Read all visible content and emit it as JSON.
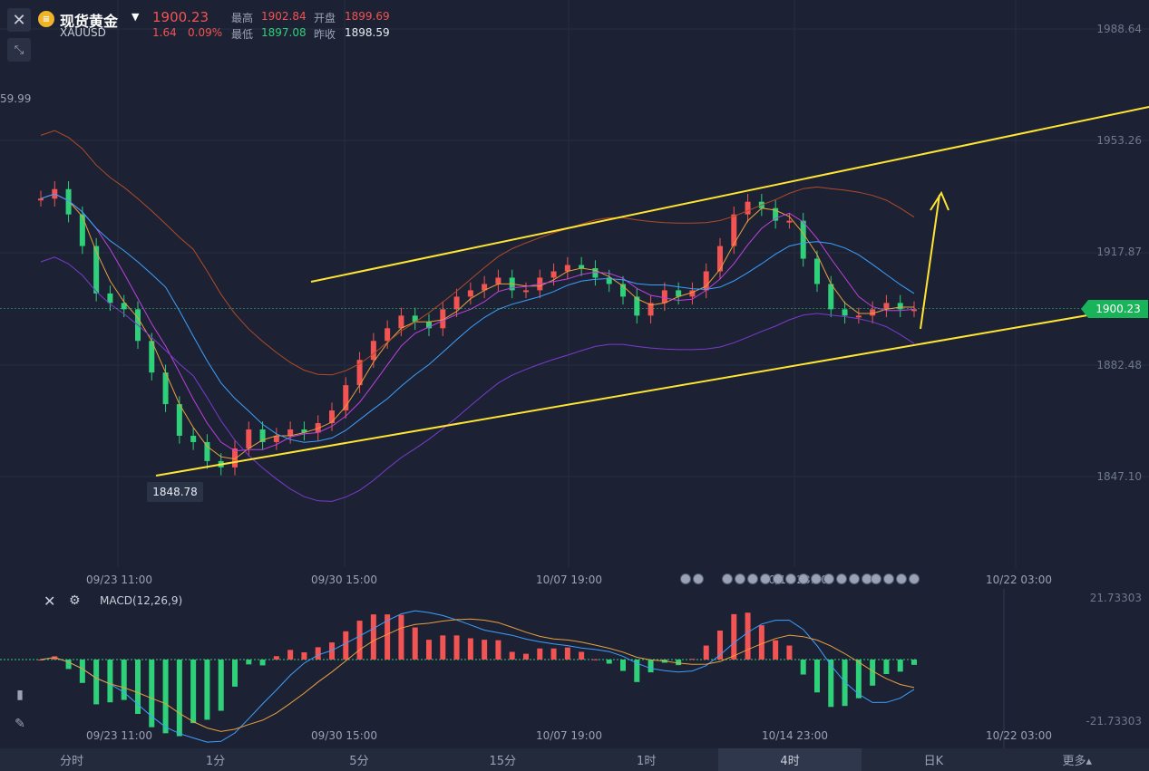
{
  "header": {
    "close_icon": "close-icon",
    "shrink_icon": "shrink-icon",
    "title": "现货黄金",
    "symbol": "XAUUSD",
    "price": "1900.23",
    "change": "1.64",
    "change_pct": "0.09%",
    "high_label": "最高",
    "high_value": "1902.84",
    "open_label": "开盘",
    "open_value": "1899.69",
    "low_label": "最低",
    "low_value": "1897.08",
    "prev_close_label": "昨收",
    "prev_close_value": "1898.59"
  },
  "main_chart": {
    "y_ticks": [
      "1988.64",
      "1953.26",
      "1917.87",
      "1882.48",
      "1847.10"
    ],
    "x_ticks": [
      "09/23 11:00",
      "09/30 15:00",
      "10/07 19:00",
      "10/14 23:00",
      "10/22 03:00"
    ],
    "current_price_tag": "1900.23",
    "low_marker": "1848.78",
    "left_edge_label": "59.99",
    "colors": {
      "up": "#f25353",
      "down": "#2fd07a",
      "trendline": "#ffe533",
      "bg": "#1c2233"
    }
  },
  "macd": {
    "label": "MACD(12,26,9)",
    "y_top": "21.73303",
    "y_bottom": "-21.73303",
    "x_ticks": [
      "09/23 11:00",
      "09/30 15:00",
      "10/07 19:00",
      "10/14 23:00",
      "10/22 03:00"
    ]
  },
  "tools": [
    "candles-icon",
    "pen-icon",
    "indicator-icon"
  ],
  "tabs": [
    "分时",
    "1分",
    "5分",
    "15分",
    "1时",
    "4时",
    "日K",
    "更多▴"
  ],
  "active_tab": "4时",
  "chart_data": {
    "type": "candlestick",
    "series": [
      {
        "values": [
          1935,
          1938,
          1930,
          1920,
          1905,
          1902,
          1900,
          1890,
          1880,
          1870,
          1860,
          1858,
          1852,
          1850,
          1856,
          1862,
          1858,
          1860,
          1862,
          1861,
          1864,
          1868,
          1876,
          1884,
          1890,
          1894,
          1898,
          1896,
          1894,
          1900,
          1904,
          1906,
          1908,
          1910,
          1906,
          1906,
          1910,
          1912,
          1914,
          1913,
          1910,
          1908,
          1904,
          1898,
          1902,
          1906,
          1904,
          1906,
          1912,
          1920,
          1930,
          1934,
          1932,
          1928,
          1928,
          1916,
          1908,
          1900,
          1898,
          1898,
          1900,
          1902,
          1900,
          1900
        ]
      }
    ],
    "xlabel": "",
    "ylabel": "",
    "ylim": [
      1830,
      1990
    ]
  }
}
